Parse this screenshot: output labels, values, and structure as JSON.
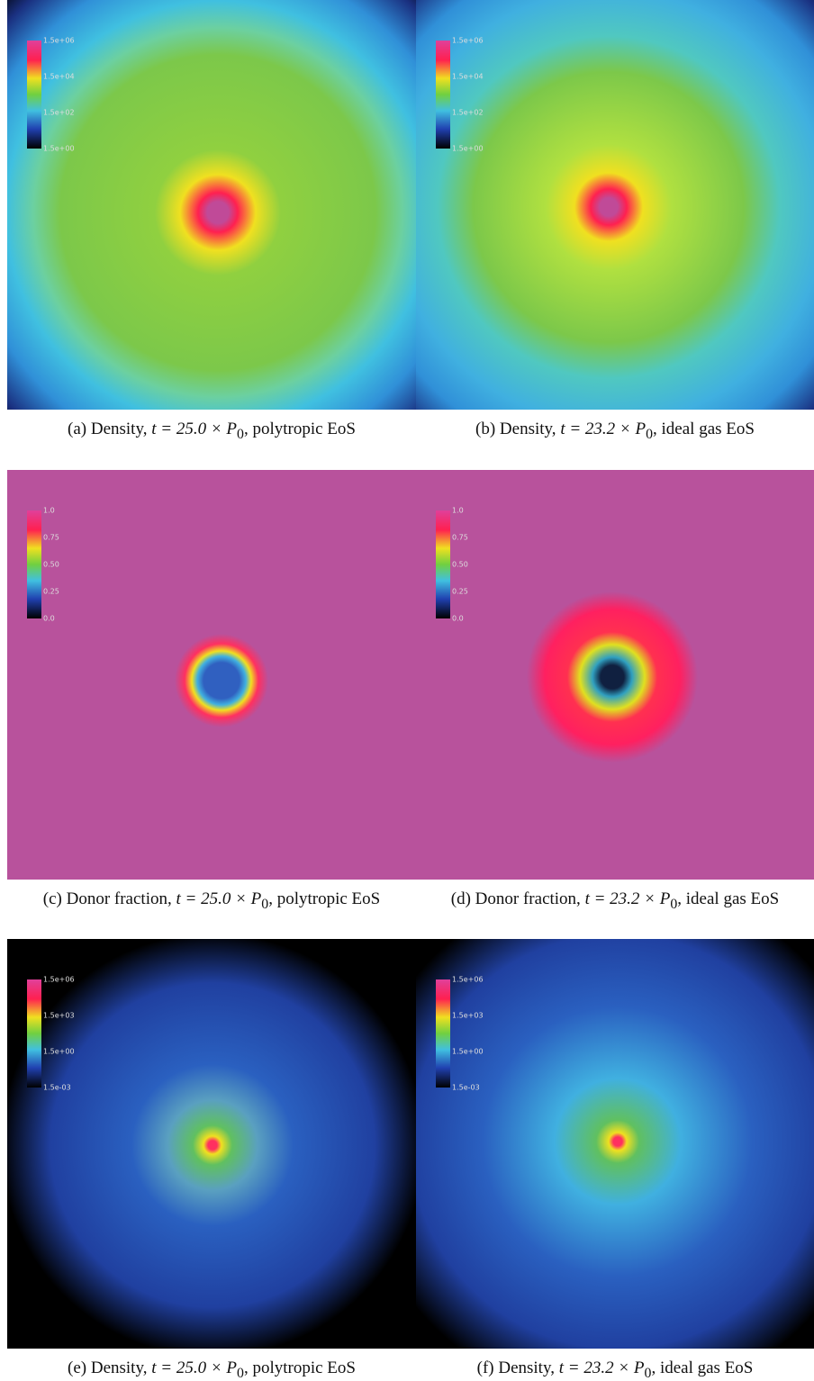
{
  "panels": [
    {
      "colorbar_ticks": [
        "1.5e+06",
        "1.5e+04",
        "1.5e+02",
        "1.5e+00"
      ],
      "caption": {
        "prefix": "(a) Density, ",
        "math": "t = 25.0 × P",
        "subscript": "0",
        "suffix": ", polytropic EoS"
      }
    },
    {
      "colorbar_ticks": [
        "1.5e+06",
        "1.5e+04",
        "1.5e+02",
        "1.5e+00"
      ],
      "caption": {
        "prefix": "(b) Density, ",
        "math": "t = 23.2 × P",
        "subscript": "0",
        "suffix": ", ideal gas EoS"
      }
    },
    {
      "colorbar_ticks": [
        "1.0",
        "0.75",
        "0.50",
        "0.25",
        "0.0"
      ],
      "caption": {
        "prefix": "(c) Donor fraction, ",
        "math": "t = 25.0 × P",
        "subscript": "0",
        "suffix": ", polytropic EoS"
      }
    },
    {
      "colorbar_ticks": [
        "1.0",
        "0.75",
        "0.50",
        "0.25",
        "0.0"
      ],
      "caption": {
        "prefix": "(d) Donor fraction, ",
        "math": "t = 23.2 × P",
        "subscript": "0",
        "suffix": ", ideal gas EoS"
      }
    },
    {
      "colorbar_ticks": [
        "1.5e+06",
        "1.5e+03",
        "1.5e+00",
        "1.5e-03"
      ],
      "caption": {
        "prefix": "(e) Density, ",
        "math": "t = 25.0 × P",
        "subscript": "0",
        "suffix": ", polytropic EoS"
      }
    },
    {
      "colorbar_ticks": [
        "1.5e+06",
        "1.5e+03",
        "1.5e+00",
        "1.5e-03"
      ],
      "caption": {
        "prefix": "(f) Density, ",
        "math": "t = 23.2 × P",
        "subscript": "0",
        "suffix": ", ideal gas EoS"
      }
    }
  ]
}
